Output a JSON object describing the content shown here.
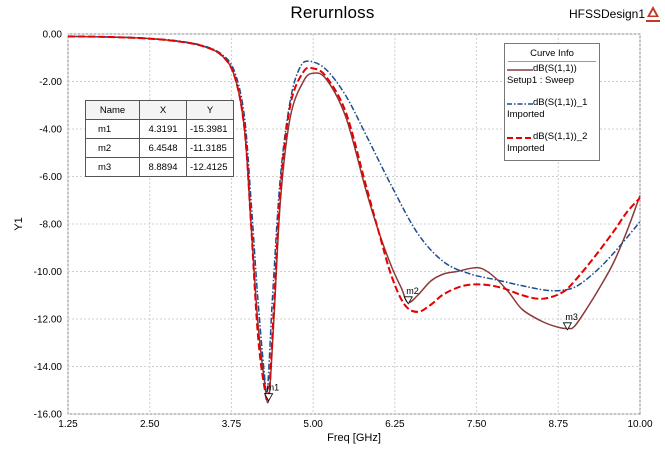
{
  "header": {
    "design_name": "HFSSDesign1",
    "logo_text": "ANSOFT"
  },
  "chart_data": {
    "type": "line",
    "title": "Rerurnloss",
    "xlabel": "Freq [GHz]",
    "ylabel": "Y1",
    "xlim": [
      1.25,
      10.0
    ],
    "ylim": [
      -16.0,
      0.0
    ],
    "x_ticks": [
      "1.25",
      "2.50",
      "3.75",
      "5.00",
      "6.25",
      "7.50",
      "8.75",
      "10.00"
    ],
    "y_ticks": [
      "0.00",
      "-2.00",
      "-4.00",
      "-6.00",
      "-8.00",
      "-10.00",
      "-12.00",
      "-14.00",
      "-16.00"
    ],
    "grid": true,
    "legend_position": "top-right",
    "legend_title": "Curve Info",
    "series": [
      {
        "name": "dB(S(1,1))",
        "sub": "Setup1 : Sweep",
        "color": "#8b3a3a",
        "style": "solid",
        "x": [
          1.25,
          1.8,
          2.4,
          2.9,
          3.3,
          3.6,
          3.8,
          3.95,
          4.05,
          4.15,
          4.25,
          4.32,
          4.4,
          4.5,
          4.65,
          4.85,
          5.0,
          5.2,
          5.5,
          5.8,
          6.0,
          6.2,
          6.35,
          6.45,
          6.6,
          6.8,
          7.0,
          7.2,
          7.45,
          7.6,
          7.8,
          8.0,
          8.2,
          8.5,
          8.75,
          8.9,
          9.0,
          9.2,
          9.4,
          9.6,
          9.8,
          10.0
        ],
        "values": [
          -0.1,
          -0.12,
          -0.18,
          -0.3,
          -0.5,
          -0.9,
          -1.8,
          -4.0,
          -8.0,
          -12.0,
          -14.5,
          -15.4,
          -12.0,
          -7.0,
          -3.5,
          -2.0,
          -1.65,
          -1.9,
          -3.5,
          -6.5,
          -8.3,
          -9.8,
          -10.7,
          -11.3,
          -11.0,
          -10.4,
          -10.1,
          -10.0,
          -9.85,
          -9.9,
          -10.3,
          -10.9,
          -11.6,
          -12.1,
          -12.35,
          -12.4,
          -12.3,
          -11.5,
          -10.6,
          -9.6,
          -8.3,
          -6.8
        ]
      },
      {
        "name": "dB(S(1,1))_1",
        "sub": "Imported",
        "color": "#1f4e8c",
        "style": "dashdot",
        "x": [
          1.25,
          1.8,
          2.4,
          2.9,
          3.3,
          3.6,
          3.8,
          3.95,
          4.05,
          4.15,
          4.25,
          4.3,
          4.38,
          4.5,
          4.65,
          4.8,
          4.95,
          5.2,
          5.5,
          5.8,
          6.2,
          6.6,
          7.0,
          7.4,
          7.8,
          8.2,
          8.6,
          8.9,
          9.1,
          9.4,
          9.7,
          10.0
        ],
        "values": [
          -0.1,
          -0.12,
          -0.17,
          -0.28,
          -0.48,
          -0.85,
          -1.6,
          -3.5,
          -7.0,
          -11.0,
          -14.2,
          -15.0,
          -11.0,
          -6.0,
          -2.8,
          -1.4,
          -1.15,
          -1.5,
          -2.6,
          -4.2,
          -6.4,
          -8.4,
          -9.6,
          -10.1,
          -10.35,
          -10.6,
          -10.8,
          -10.75,
          -10.5,
          -9.8,
          -8.9,
          -7.9
        ]
      },
      {
        "name": "dB(S(1,1))_2",
        "sub": "Imported",
        "color": "#e60000",
        "style": "dashed",
        "x": [
          1.25,
          1.8,
          2.4,
          2.9,
          3.3,
          3.6,
          3.8,
          3.95,
          4.05,
          4.15,
          4.25,
          4.32,
          4.4,
          4.5,
          4.65,
          4.85,
          5.0,
          5.2,
          5.5,
          5.8,
          6.0,
          6.2,
          6.4,
          6.6,
          6.8,
          7.0,
          7.3,
          7.6,
          7.9,
          8.2,
          8.5,
          8.8,
          9.0,
          9.3,
          9.6,
          9.8,
          10.0
        ],
        "values": [
          -0.1,
          -0.12,
          -0.18,
          -0.3,
          -0.5,
          -0.9,
          -1.8,
          -4.0,
          -8.0,
          -12.5,
          -14.8,
          -15.2,
          -11.5,
          -6.5,
          -3.0,
          -1.6,
          -1.45,
          -1.8,
          -3.3,
          -6.3,
          -8.3,
          -10.2,
          -11.4,
          -11.7,
          -11.4,
          -10.95,
          -10.6,
          -10.55,
          -10.7,
          -11.0,
          -11.15,
          -10.9,
          -10.4,
          -9.4,
          -8.3,
          -7.5,
          -6.9
        ]
      }
    ],
    "markers": {
      "headers": [
        "Name",
        "X",
        "Y"
      ],
      "rows": [
        {
          "name": "m1",
          "x": "4.3191",
          "y": "-15.3981",
          "fx": 4.3191,
          "fy": -15.3981
        },
        {
          "name": "m2",
          "x": "6.4548",
          "y": "-11.3185",
          "fx": 6.4548,
          "fy": -11.3185
        },
        {
          "name": "m3",
          "x": "8.8894",
          "y": "-12.4125",
          "fx": 8.8894,
          "fy": -12.4125
        }
      ]
    }
  }
}
